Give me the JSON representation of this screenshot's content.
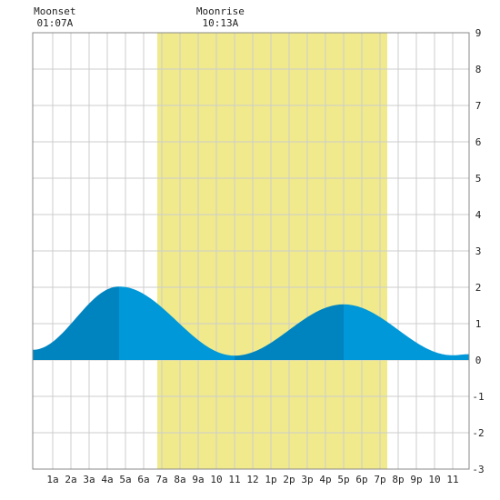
{
  "chart_data": {
    "type": "area",
    "moon": [
      {
        "event_label": "Moonset",
        "time_label": "01:07A",
        "hour": 1.117
      },
      {
        "event_label": "Moonrise",
        "time_label": "10:13A",
        "hour": 10.217
      }
    ],
    "daylight": {
      "start_hour": 6.75,
      "end_hour": 19.4
    },
    "xlim": [
      -0.1,
      23.9
    ],
    "ylim": [
      -3,
      9
    ],
    "x_ticks": [
      {
        "hour": 1,
        "label": "1a"
      },
      {
        "hour": 2,
        "label": "2a"
      },
      {
        "hour": 3,
        "label": "3a"
      },
      {
        "hour": 4,
        "label": "4a"
      },
      {
        "hour": 5,
        "label": "5a"
      },
      {
        "hour": 6,
        "label": "6a"
      },
      {
        "hour": 7,
        "label": "7a"
      },
      {
        "hour": 8,
        "label": "8a"
      },
      {
        "hour": 9,
        "label": "9a"
      },
      {
        "hour": 10,
        "label": "10"
      },
      {
        "hour": 11,
        "label": "11"
      },
      {
        "hour": 12,
        "label": "12"
      },
      {
        "hour": 13,
        "label": "1p"
      },
      {
        "hour": 14,
        "label": "2p"
      },
      {
        "hour": 15,
        "label": "3p"
      },
      {
        "hour": 16,
        "label": "4p"
      },
      {
        "hour": 17,
        "label": "5p"
      },
      {
        "hour": 18,
        "label": "6p"
      },
      {
        "hour": 19,
        "label": "7p"
      },
      {
        "hour": 20,
        "label": "8p"
      },
      {
        "hour": 21,
        "label": "9p"
      },
      {
        "hour": 22,
        "label": "10"
      },
      {
        "hour": 23,
        "label": "11"
      }
    ],
    "y_ticks": [
      {
        "value": 9,
        "label": "9"
      },
      {
        "value": 8,
        "label": "8"
      },
      {
        "value": 7,
        "label": "7"
      },
      {
        "value": 6,
        "label": "6"
      },
      {
        "value": 5,
        "label": "5"
      },
      {
        "value": 4,
        "label": "4"
      },
      {
        "value": 3,
        "label": "3"
      },
      {
        "value": 2,
        "label": "2"
      },
      {
        "value": 1,
        "label": "1"
      },
      {
        "value": 0,
        "label": "0"
      },
      {
        "value": -1,
        "label": "-1"
      },
      {
        "value": -2,
        "label": "-2"
      },
      {
        "value": -3,
        "label": "-3"
      }
    ],
    "tide_curve": [
      {
        "hour": -0.1,
        "height": 0.28
      },
      {
        "hour": 4.65,
        "height": 2.02
      },
      {
        "hour": 11.0,
        "height": 0.12
      },
      {
        "hour": 17.0,
        "height": 1.53
      },
      {
        "hour": 23.0,
        "height": 0.13
      },
      {
        "hour": 23.9,
        "height": 0.16
      }
    ],
    "rising_intervals": [
      [
        -0.1,
        4.65
      ],
      [
        11.0,
        17.0
      ]
    ],
    "colors": {
      "daylight": "#f0ea8c",
      "tide_rising": "#0084c0",
      "tide_falling": "#0098d8",
      "grid": "#cccccc",
      "frame": "#888888"
    },
    "grid": true
  }
}
